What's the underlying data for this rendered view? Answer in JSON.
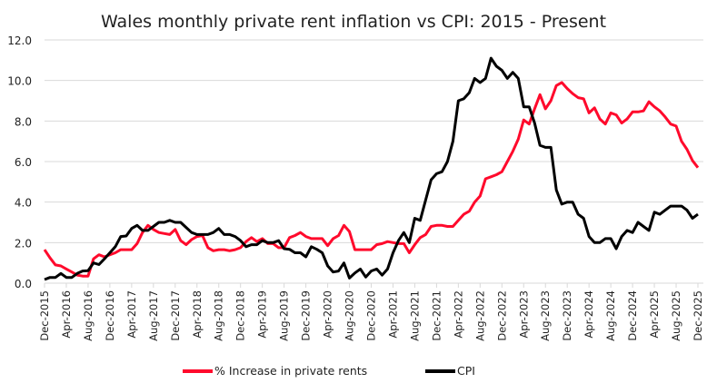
{
  "chart_data": {
    "type": "line",
    "title": "Wales monthly private rent inflation vs CPI: 2015 - Present",
    "xlabel": "",
    "ylabel": "",
    "ylim": [
      0,
      12
    ],
    "yticks": [
      "0.0",
      "2.0",
      "4.0",
      "6.0",
      "8.0",
      "10.0",
      "12.0"
    ],
    "grid": true,
    "legend_position": "bottom",
    "x_start": "Dec-2015",
    "x_end": "Dec-2025",
    "x_tick_labels": [
      "Dec-2015",
      "Apr-2016",
      "Aug-2016",
      "Dec-2016",
      "Apr-2017",
      "Aug-2017",
      "Dec-2017",
      "Apr-2018",
      "Aug-2018",
      "Dec-2018",
      "Apr-2019",
      "Aug-2019",
      "Dec-2019",
      "Apr-2020",
      "Aug-2020",
      "Dec-2020",
      "Apr-2021",
      "Aug-2021",
      "Dec-2021",
      "Apr-2022",
      "Aug-2022",
      "Dec-2022",
      "Apr-2023",
      "Aug-2023",
      "Dec-2023",
      "Apr-2024",
      "Aug-2024",
      "Dec-2024",
      "Apr-2025",
      "Aug-2025",
      "Dec-2025"
    ],
    "series": [
      {
        "name": "% Increase in private rents",
        "color": "#ff0a2c",
        "values": [
          1.65,
          1.25,
          0.9,
          0.85,
          0.7,
          0.55,
          0.4,
          0.35,
          0.35,
          1.2,
          1.4,
          1.3,
          1.4,
          1.5,
          1.65,
          1.65,
          1.65,
          1.95,
          2.5,
          2.85,
          2.65,
          2.5,
          2.45,
          2.4,
          2.65,
          2.1,
          1.9,
          2.15,
          2.3,
          2.35,
          1.75,
          1.6,
          1.65,
          1.65,
          1.6,
          1.65,
          1.75,
          2.05,
          2.25,
          2.05,
          2.2,
          1.95,
          1.95,
          1.75,
          1.75,
          2.25,
          2.35,
          2.5,
          2.3,
          2.2,
          2.2,
          2.2,
          1.85,
          2.2,
          2.35,
          2.85,
          2.55,
          1.65,
          1.65,
          1.65,
          1.65,
          1.9,
          1.95,
          2.05,
          2.0,
          1.95,
          1.95,
          1.5,
          1.9,
          2.25,
          2.4,
          2.8,
          2.85,
          2.85,
          2.8,
          2.8,
          3.1,
          3.4,
          3.55,
          4.0,
          4.3,
          5.15,
          5.25,
          5.35,
          5.5,
          6.0,
          6.5,
          7.1,
          8.05,
          7.85,
          8.6,
          9.3,
          8.6,
          9.0,
          9.75,
          9.9,
          9.6,
          9.35,
          9.15,
          9.1,
          8.4,
          8.65,
          8.1,
          7.85,
          8.4,
          8.3,
          7.9,
          8.1,
          8.45,
          8.45,
          8.5,
          8.95,
          8.7,
          8.5,
          8.2,
          7.85,
          7.75,
          7.0,
          6.6,
          6.05,
          5.7
        ]
      },
      {
        "name": "CPI",
        "color": "#000000",
        "values": [
          0.18,
          0.28,
          0.28,
          0.48,
          0.28,
          0.28,
          0.48,
          0.6,
          0.62,
          1.0,
          0.92,
          1.2,
          1.5,
          1.8,
          2.3,
          2.33,
          2.7,
          2.85,
          2.6,
          2.6,
          2.8,
          3.0,
          3.0,
          3.1,
          3.0,
          3.0,
          2.75,
          2.5,
          2.4,
          2.4,
          2.4,
          2.5,
          2.7,
          2.4,
          2.4,
          2.3,
          2.1,
          1.8,
          1.9,
          1.9,
          2.1,
          2.0,
          2.0,
          2.1,
          1.7,
          1.67,
          1.5,
          1.5,
          1.3,
          1.8,
          1.67,
          1.5,
          0.85,
          0.55,
          0.6,
          1.0,
          0.25,
          0.5,
          0.7,
          0.3,
          0.6,
          0.7,
          0.4,
          0.7,
          1.5,
          2.1,
          2.5,
          2.0,
          3.2,
          3.1,
          4.1,
          5.1,
          5.4,
          5.5,
          6.0,
          7.0,
          9.0,
          9.1,
          9.4,
          10.1,
          9.9,
          10.1,
          11.1,
          10.7,
          10.5,
          10.1,
          10.4,
          10.1,
          8.7,
          8.7,
          7.9,
          6.8,
          6.7,
          6.7,
          4.6,
          3.9,
          4.0,
          4.0,
          3.4,
          3.2,
          2.3,
          2.0,
          2.0,
          2.2,
          2.2,
          1.7,
          2.3,
          2.6,
          2.5,
          3.0,
          2.8,
          2.6,
          3.5,
          3.4,
          3.6,
          3.8,
          3.8,
          3.8,
          3.6,
          3.2,
          3.4
        ]
      }
    ]
  }
}
